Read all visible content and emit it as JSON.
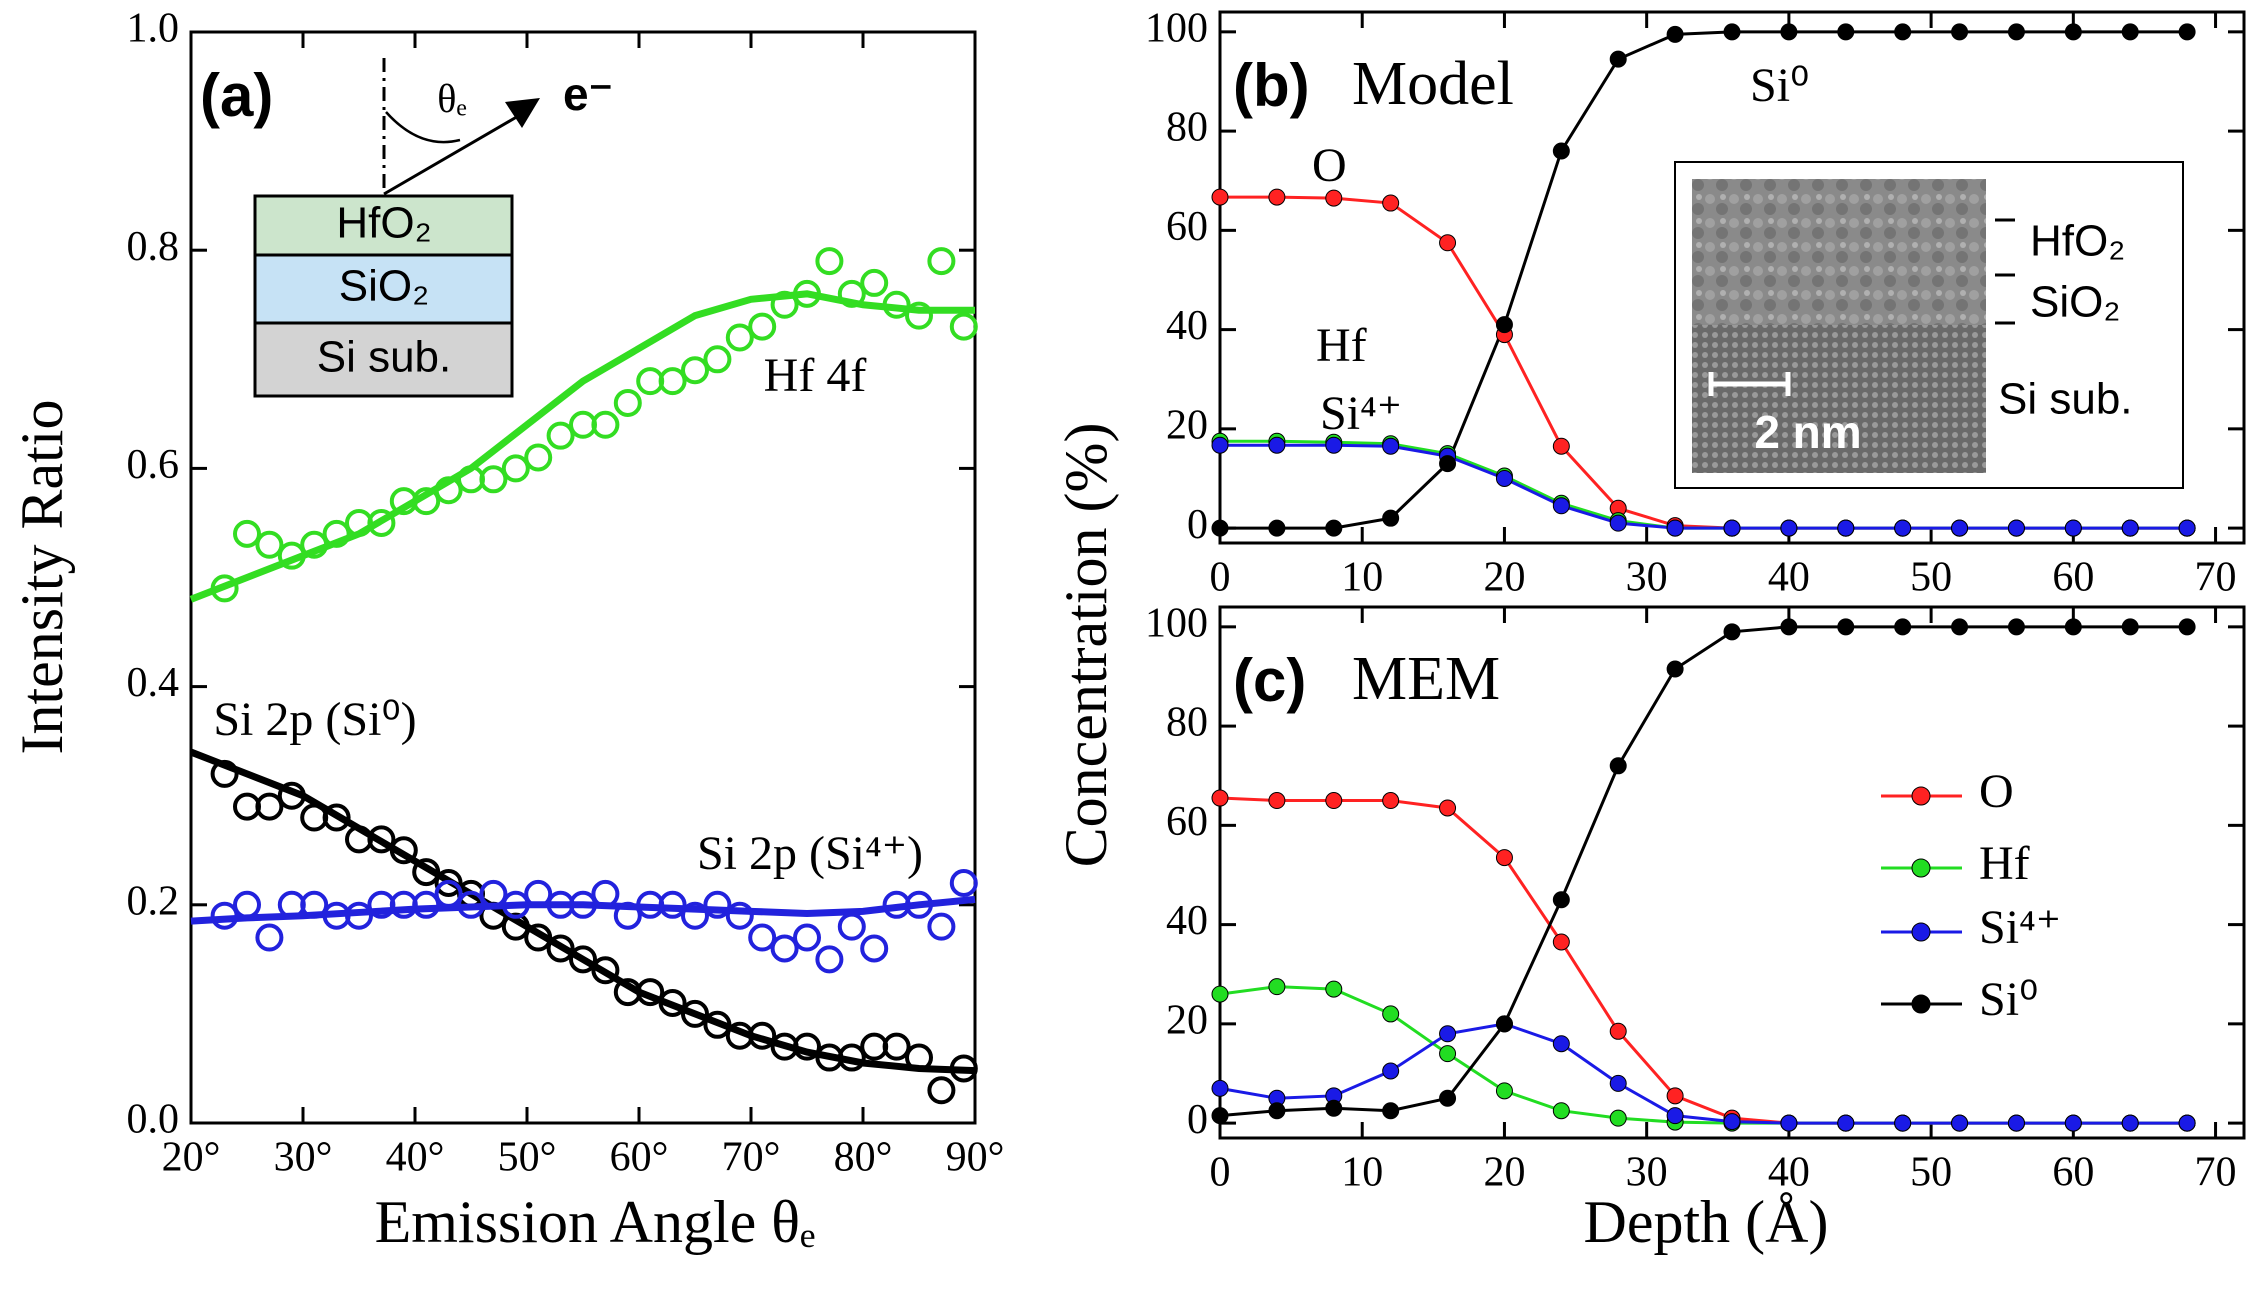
{
  "chart_data": [
    {
      "type": "scatter",
      "panel_label": "(a)",
      "xlabel": "Emission Angle θₑ",
      "ylabel": "Intensity Ratio",
      "xlim": [
        20,
        90
      ],
      "ylim": [
        0,
        1
      ],
      "xticks": [
        {
          "value": 20,
          "label": "20°"
        },
        {
          "value": 30,
          "label": "30°"
        },
        {
          "value": 40,
          "label": "40°"
        },
        {
          "value": 50,
          "label": "50°"
        },
        {
          "value": 60,
          "label": "60°"
        },
        {
          "value": 70,
          "label": "70°"
        },
        {
          "value": 80,
          "label": "80°"
        },
        {
          "value": 90,
          "label": "90°"
        }
      ],
      "yticks": [
        {
          "value": 0,
          "label": "0.0"
        },
        0.2,
        0.4,
        0.6,
        0.8,
        {
          "value": 1,
          "label": "1.0"
        }
      ],
      "inset": {
        "layers": [
          "HfO₂",
          "SiO₂",
          "Si sub."
        ],
        "angle_label": "θₑ",
        "electron_label": "e⁻"
      },
      "x": [
        23,
        25,
        27,
        29,
        31,
        33,
        35,
        37,
        39,
        41,
        43,
        45,
        47,
        49,
        51,
        53,
        55,
        57,
        59,
        61,
        63,
        65,
        67,
        69,
        71,
        73,
        75,
        77,
        79,
        81,
        83,
        85,
        87,
        89
      ],
      "fit_x": [
        20,
        25,
        30,
        35,
        40,
        45,
        50,
        55,
        60,
        65,
        70,
        75,
        80,
        85,
        90
      ],
      "series": [
        {
          "name": "Hf 4f",
          "color": "#33dd22",
          "values": [
            0.49,
            0.54,
            0.53,
            0.52,
            0.53,
            0.54,
            0.55,
            0.55,
            0.57,
            0.57,
            0.58,
            0.59,
            0.59,
            0.6,
            0.61,
            0.63,
            0.64,
            0.64,
            0.66,
            0.68,
            0.68,
            0.69,
            0.7,
            0.72,
            0.73,
            0.75,
            0.76,
            0.79,
            0.76,
            0.77,
            0.75,
            0.74,
            0.79,
            0.73
          ],
          "fit_values": [
            0.48,
            0.5,
            0.52,
            0.54,
            0.57,
            0.6,
            0.64,
            0.68,
            0.71,
            0.74,
            0.755,
            0.76,
            0.75,
            0.745,
            0.745
          ]
        },
        {
          "name": "Si 2p (Si⁰)",
          "color": "#000000",
          "values": [
            0.32,
            0.29,
            0.29,
            0.3,
            0.28,
            0.28,
            0.26,
            0.26,
            0.25,
            0.23,
            0.22,
            0.21,
            0.19,
            0.18,
            0.17,
            0.16,
            0.15,
            0.14,
            0.12,
            0.12,
            0.11,
            0.1,
            0.09,
            0.08,
            0.08,
            0.07,
            0.07,
            0.06,
            0.06,
            0.07,
            0.07,
            0.06,
            0.03,
            0.05
          ],
          "fit_values": [
            0.34,
            0.32,
            0.3,
            0.27,
            0.24,
            0.21,
            0.18,
            0.15,
            0.12,
            0.1,
            0.08,
            0.065,
            0.055,
            0.05,
            0.048
          ]
        },
        {
          "name": "Si 2p (Si⁴⁺)",
          "color": "#2222dd",
          "values": [
            0.19,
            0.2,
            0.17,
            0.2,
            0.2,
            0.19,
            0.19,
            0.2,
            0.2,
            0.2,
            0.21,
            0.2,
            0.21,
            0.2,
            0.21,
            0.2,
            0.2,
            0.21,
            0.19,
            0.2,
            0.2,
            0.19,
            0.2,
            0.19,
            0.17,
            0.16,
            0.17,
            0.15,
            0.18,
            0.16,
            0.2,
            0.2,
            0.18,
            0.22
          ],
          "fit_values": [
            0.185,
            0.188,
            0.19,
            0.193,
            0.196,
            0.198,
            0.2,
            0.2,
            0.198,
            0.196,
            0.194,
            0.192,
            0.194,
            0.2,
            0.205
          ]
        }
      ]
    },
    {
      "type": "line",
      "panel_label": "(b)",
      "title": "Model",
      "ylabel": "Concentration (%)",
      "legend": false,
      "xlim": [
        0,
        72
      ],
      "ylim": [
        -3,
        104
      ],
      "xticks": [
        0,
        10,
        20,
        30,
        40,
        50,
        60,
        70
      ],
      "yticks": [
        0,
        20,
        40,
        60,
        80,
        100
      ],
      "inset": {
        "labels": [
          "HfO₂",
          "SiO₂",
          "Si sub."
        ],
        "scale_bar": "2 nm"
      },
      "x": [
        0,
        4,
        8,
        12,
        16,
        20,
        24,
        28,
        32,
        36,
        40,
        44,
        48,
        52,
        56,
        60,
        64,
        68
      ],
      "series": [
        {
          "name": "O",
          "color": "#ff2222",
          "values": [
            66.7,
            66.7,
            66.5,
            65.5,
            57.5,
            39,
            16.5,
            4,
            0.5,
            0,
            0,
            0,
            0,
            0,
            0,
            0,
            0,
            0
          ]
        },
        {
          "name": "Hf",
          "color": "#22dd22",
          "values": [
            17.5,
            17.5,
            17.3,
            17,
            15,
            10.5,
            5,
            1.5,
            0,
            0,
            0,
            0,
            0,
            0,
            0,
            0,
            0,
            0
          ]
        },
        {
          "name": "Si⁴⁺",
          "color": "#1a1ae6",
          "values": [
            16.7,
            16.7,
            16.7,
            16.5,
            14.5,
            10,
            4.5,
            1,
            0,
            0,
            0,
            0,
            0,
            0,
            0,
            0,
            0,
            0
          ]
        },
        {
          "name": "Si⁰",
          "color": "#000000",
          "values": [
            0,
            0,
            0,
            2,
            13,
            41,
            76,
            94.5,
            99.5,
            100,
            100,
            100,
            100,
            100,
            100,
            100,
            100,
            100
          ]
        }
      ]
    },
    {
      "type": "line",
      "panel_label": "(c)",
      "title": "MEM",
      "xlabel": "Depth (Å)",
      "legend": "right",
      "xlim": [
        0,
        72
      ],
      "ylim": [
        -3,
        104
      ],
      "xticks": [
        0,
        10,
        20,
        30,
        40,
        50,
        60,
        70
      ],
      "yticks": [
        0,
        20,
        40,
        60,
        80,
        100
      ],
      "x": [
        0,
        4,
        8,
        12,
        16,
        20,
        24,
        28,
        32,
        36,
        40,
        44,
        48,
        52,
        56,
        60,
        64,
        68
      ],
      "series": [
        {
          "name": "O",
          "color": "#ff2222",
          "values": [
            65.5,
            65,
            65,
            65,
            63.5,
            53.5,
            36.5,
            18.5,
            5.5,
            1,
            0,
            0,
            0,
            0,
            0,
            0,
            0,
            0
          ]
        },
        {
          "name": "Hf",
          "color": "#22dd22",
          "values": [
            26,
            27.5,
            27,
            22,
            14,
            6.5,
            2.5,
            1,
            0.2,
            0,
            0,
            0,
            0,
            0,
            0,
            0,
            0,
            0
          ]
        },
        {
          "name": "Si⁴⁺",
          "color": "#1a1ae6",
          "values": [
            7,
            5,
            5.5,
            10.5,
            18,
            20,
            16,
            8,
            1.5,
            0.3,
            0,
            0,
            0,
            0,
            0,
            0,
            0,
            0
          ]
        },
        {
          "name": "Si⁰",
          "color": "#000000",
          "values": [
            1.5,
            2.5,
            3,
            2.5,
            5,
            20,
            45,
            72,
            91.5,
            99,
            100,
            100,
            100,
            100,
            100,
            100,
            100,
            100
          ]
        }
      ]
    }
  ]
}
